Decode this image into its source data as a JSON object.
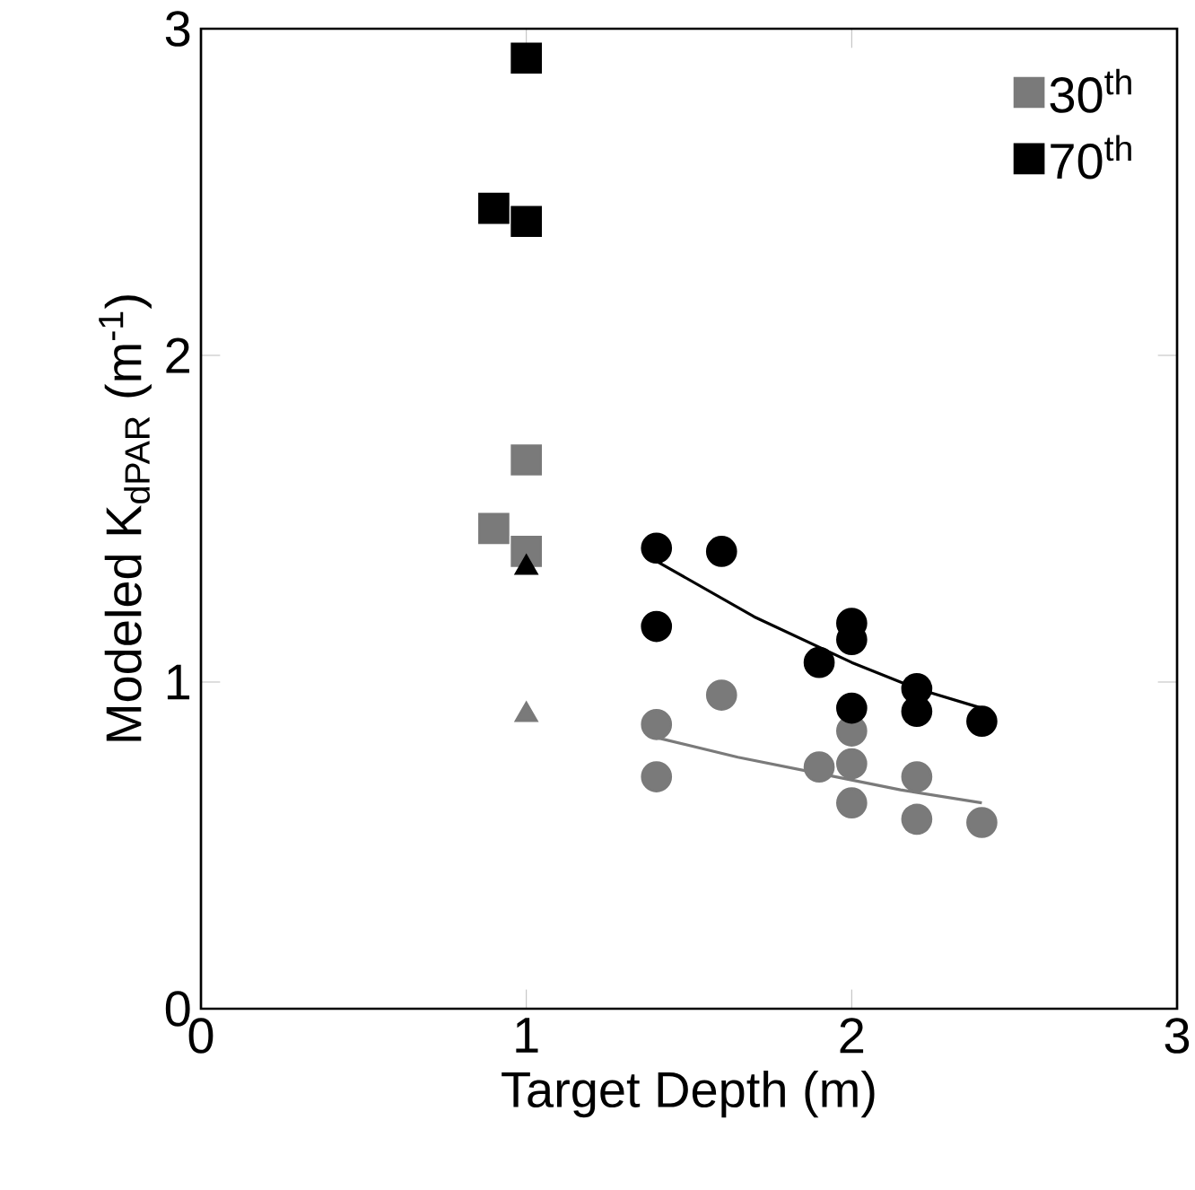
{
  "chart_data": {
    "type": "scatter",
    "xlabel": "Target Depth (m)",
    "ylabel": "Modeled K$_{dPAR}$  (m$^{-1}$)",
    "xlim": [
      0,
      3
    ],
    "ylim": [
      0,
      3
    ],
    "xticks": [
      0,
      1,
      2,
      3
    ],
    "yticks": [
      0,
      1,
      2,
      3
    ],
    "grid": false,
    "legend": "top right",
    "series": [
      {
        "name": "30$^{th}$",
        "color": "#7a7a7a",
        "marker": "square",
        "x": [
          0.9,
          1.0,
          1.0
        ],
        "values": [
          1.47,
          1.68,
          1.4
        ]
      },
      {
        "name": "70$^{th}$",
        "color": "#000000",
        "marker": "square",
        "x": [
          0.9,
          1.0,
          1.0
        ],
        "values": [
          2.45,
          2.91,
          2.41
        ]
      },
      {
        "color": "#7a7a7a",
        "marker": "triangle",
        "x": [
          1.0
        ],
        "values": [
          0.9
        ]
      },
      {
        "color": "#000000",
        "marker": "triangle",
        "x": [
          1.0
        ],
        "values": [
          1.35
        ]
      },
      {
        "color": "#7a7a7a",
        "marker": "circle",
        "x": [
          1.4,
          1.4,
          1.6,
          1.9,
          2.0,
          2.0,
          2.0,
          2.2,
          2.2,
          2.4
        ],
        "values": [
          0.87,
          0.71,
          0.96,
          0.74,
          0.85,
          0.75,
          0.63,
          0.71,
          0.58,
          0.57
        ]
      },
      {
        "color": "#000000",
        "marker": "circle",
        "x": [
          1.4,
          1.4,
          1.6,
          1.9,
          2.0,
          2.0,
          2.0,
          2.2,
          2.2,
          2.4
        ],
        "values": [
          1.41,
          1.17,
          1.4,
          1.06,
          1.18,
          1.13,
          0.92,
          0.98,
          0.91,
          0.88
        ]
      },
      {
        "type": "line",
        "color": "#7a7a7a",
        "marker": "none",
        "x": [
          1.4,
          1.65,
          1.9,
          2.15,
          2.4
        ],
        "values": [
          0.83,
          0.77,
          0.72,
          0.67,
          0.63
        ]
      },
      {
        "type": "line",
        "color": "#000000",
        "marker": "none",
        "x": [
          1.4,
          1.7,
          2.0,
          2.2,
          2.4
        ],
        "values": [
          1.37,
          1.2,
          1.06,
          0.98,
          0.92
        ]
      }
    ]
  }
}
